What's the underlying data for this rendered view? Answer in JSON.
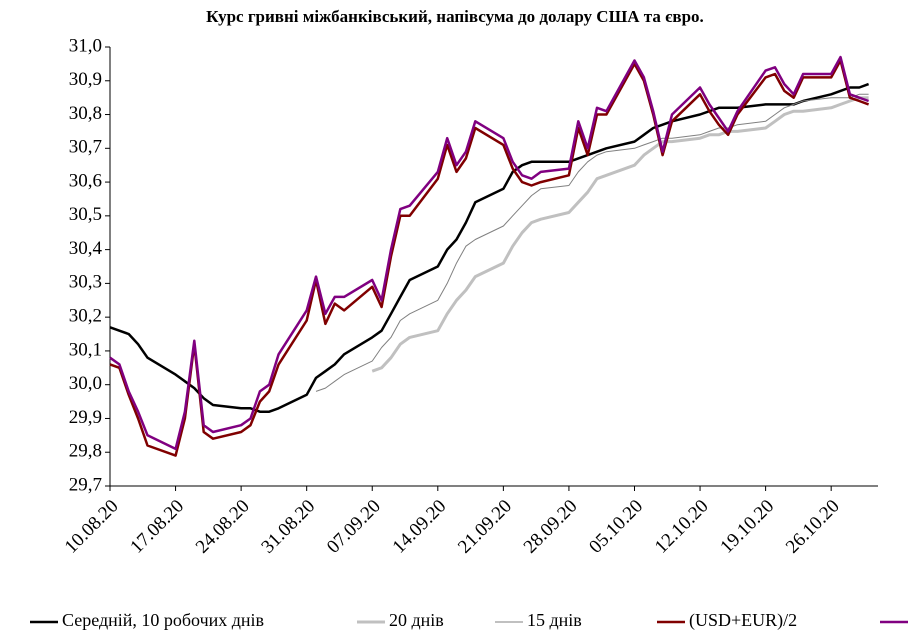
{
  "chart_data": {
    "type": "line",
    "title": "Курс гривні міжбанківський, напівсума до долару США та євро.",
    "x": [
      "10.08.20",
      "11.08.20",
      "12.08.20",
      "13.08.20",
      "14.08.20",
      "17.08.20",
      "18.08.20",
      "19.08.20",
      "20.08.20",
      "21.08.20",
      "24.08.20",
      "25.08.20",
      "26.08.20",
      "27.08.20",
      "28.08.20",
      "31.08.20",
      "01.09.20",
      "02.09.20",
      "03.09.20",
      "04.09.20",
      "07.09.20",
      "08.09.20",
      "09.09.20",
      "10.09.20",
      "11.09.20",
      "14.09.20",
      "15.09.20",
      "16.09.20",
      "17.09.20",
      "18.09.20",
      "21.09.20",
      "22.09.20",
      "23.09.20",
      "24.09.20",
      "25.09.20",
      "28.09.20",
      "29.09.20",
      "30.09.20",
      "01.10.20",
      "02.10.20",
      "05.10.20",
      "06.10.20",
      "07.10.20",
      "08.10.20",
      "09.10.20",
      "12.10.20",
      "13.10.20",
      "14.10.20",
      "15.10.20",
      "16.10.20",
      "19.10.20",
      "20.10.20",
      "21.10.20",
      "22.10.20",
      "23.10.20",
      "26.10.20",
      "27.10.20",
      "28.10.20",
      "29.10.20",
      "30.10.20"
    ],
    "xlim": [
      "10.08.20",
      "31.10.20"
    ],
    "xticks": [
      "10.08.20",
      "17.08.20",
      "24.08.20",
      "31.08.20",
      "07.09.20",
      "14.09.20",
      "21.09.20",
      "28.09.20",
      "05.10.20",
      "12.10.20",
      "19.10.20",
      "26.10.20"
    ],
    "ylim": [
      29.7,
      31.0
    ],
    "yticks": [
      {
        "value": 29.7,
        "label": "29,7"
      },
      {
        "value": 29.8,
        "label": "29,8"
      },
      {
        "value": 29.9,
        "label": "29,9"
      },
      {
        "value": 30.0,
        "label": "30,0"
      },
      {
        "value": 30.1,
        "label": "30,1"
      },
      {
        "value": 30.2,
        "label": "30,2"
      },
      {
        "value": 30.3,
        "label": "30,3"
      },
      {
        "value": 30.4,
        "label": "30,4"
      },
      {
        "value": 30.5,
        "label": "30,5"
      },
      {
        "value": 30.6,
        "label": "30,6"
      },
      {
        "value": 30.7,
        "label": "30,7"
      },
      {
        "value": 30.8,
        "label": "30,8"
      },
      {
        "value": 30.9,
        "label": "30,9"
      },
      {
        "value": 31.0,
        "label": "31,0"
      }
    ],
    "grid": false,
    "legend": "bottom",
    "series": [
      {
        "name": "Середній, 10 робочих днів",
        "color": "#000000",
        "width": 2.5,
        "values": [
          30.17,
          30.16,
          30.15,
          30.12,
          30.08,
          30.03,
          30.01,
          29.99,
          29.96,
          29.94,
          29.93,
          29.93,
          29.92,
          29.92,
          29.93,
          29.97,
          30.02,
          30.04,
          30.06,
          30.09,
          30.14,
          30.16,
          30.21,
          30.26,
          30.31,
          30.35,
          30.4,
          30.43,
          30.48,
          30.54,
          30.58,
          30.63,
          30.65,
          30.66,
          30.66,
          30.66,
          30.67,
          30.68,
          30.69,
          30.7,
          30.72,
          30.74,
          30.76,
          30.77,
          30.78,
          30.8,
          30.81,
          30.82,
          30.82,
          30.82,
          30.83,
          30.83,
          30.83,
          30.83,
          30.84,
          30.86,
          30.87,
          30.88,
          30.88,
          30.89
        ]
      },
      {
        "name": "20 днів",
        "color": "#c0c0c0",
        "width": 3,
        "values": [
          null,
          null,
          null,
          null,
          null,
          null,
          null,
          null,
          null,
          null,
          null,
          null,
          null,
          null,
          null,
          null,
          null,
          null,
          null,
          null,
          30.04,
          30.05,
          30.08,
          30.12,
          30.14,
          30.16,
          30.21,
          30.25,
          30.28,
          30.32,
          30.36,
          30.41,
          30.45,
          30.48,
          30.49,
          30.51,
          30.54,
          30.57,
          30.61,
          30.62,
          30.65,
          30.68,
          30.7,
          30.72,
          30.72,
          30.73,
          30.74,
          30.74,
          30.75,
          30.75,
          30.76,
          30.78,
          30.8,
          30.81,
          30.81,
          30.82,
          30.83,
          30.84,
          30.85,
          30.85
        ]
      },
      {
        "name": "15 днів",
        "color": "#808080",
        "width": 1,
        "values": [
          null,
          null,
          null,
          null,
          null,
          null,
          null,
          null,
          null,
          null,
          null,
          null,
          null,
          null,
          null,
          null,
          29.98,
          29.99,
          30.01,
          30.03,
          30.07,
          30.11,
          30.14,
          30.19,
          30.21,
          30.25,
          30.3,
          30.36,
          30.41,
          30.43,
          30.47,
          30.5,
          30.53,
          30.56,
          30.58,
          30.59,
          30.63,
          30.66,
          30.68,
          30.69,
          30.7,
          30.71,
          30.72,
          30.73,
          30.73,
          30.74,
          30.75,
          30.76,
          30.76,
          30.77,
          30.78,
          30.8,
          30.82,
          30.83,
          30.84,
          30.85,
          30.85,
          30.85,
          30.86,
          30.86
        ]
      },
      {
        "name": "(USD+EUR)/2",
        "color": "#800000",
        "width": 2.5,
        "values": [
          30.06,
          30.05,
          29.97,
          29.9,
          29.82,
          29.79,
          29.9,
          30.12,
          29.86,
          29.84,
          29.86,
          29.88,
          29.95,
          29.98,
          30.06,
          30.19,
          30.31,
          30.18,
          30.24,
          30.22,
          30.29,
          30.23,
          30.38,
          30.5,
          30.5,
          30.61,
          30.71,
          30.63,
          30.67,
          30.76,
          30.71,
          30.64,
          30.6,
          30.59,
          30.6,
          30.62,
          30.76,
          30.68,
          30.8,
          30.8,
          30.95,
          30.9,
          30.8,
          30.68,
          30.78,
          30.86,
          30.81,
          30.77,
          30.74,
          30.8,
          30.91,
          30.92,
          30.87,
          30.85,
          30.91,
          30.91,
          30.96,
          30.85,
          30.84,
          30.83
        ]
      },
      {
        "color": "#800080",
        "width": 2.5,
        "values": [
          30.08,
          30.06,
          29.98,
          29.92,
          29.85,
          29.81,
          29.92,
          30.13,
          29.88,
          29.86,
          29.88,
          29.9,
          29.98,
          30.0,
          30.09,
          30.22,
          30.32,
          30.21,
          30.26,
          30.26,
          30.31,
          30.25,
          30.4,
          30.52,
          30.53,
          30.63,
          30.73,
          30.65,
          30.69,
          30.78,
          30.73,
          30.66,
          30.62,
          30.61,
          30.63,
          30.64,
          30.78,
          30.7,
          30.82,
          30.81,
          30.96,
          30.91,
          30.81,
          30.69,
          30.8,
          30.88,
          30.83,
          30.79,
          30.75,
          30.81,
          30.93,
          30.94,
          30.89,
          30.86,
          30.92,
          30.92,
          30.97,
          30.86,
          30.85,
          30.84
        ]
      }
    ]
  }
}
